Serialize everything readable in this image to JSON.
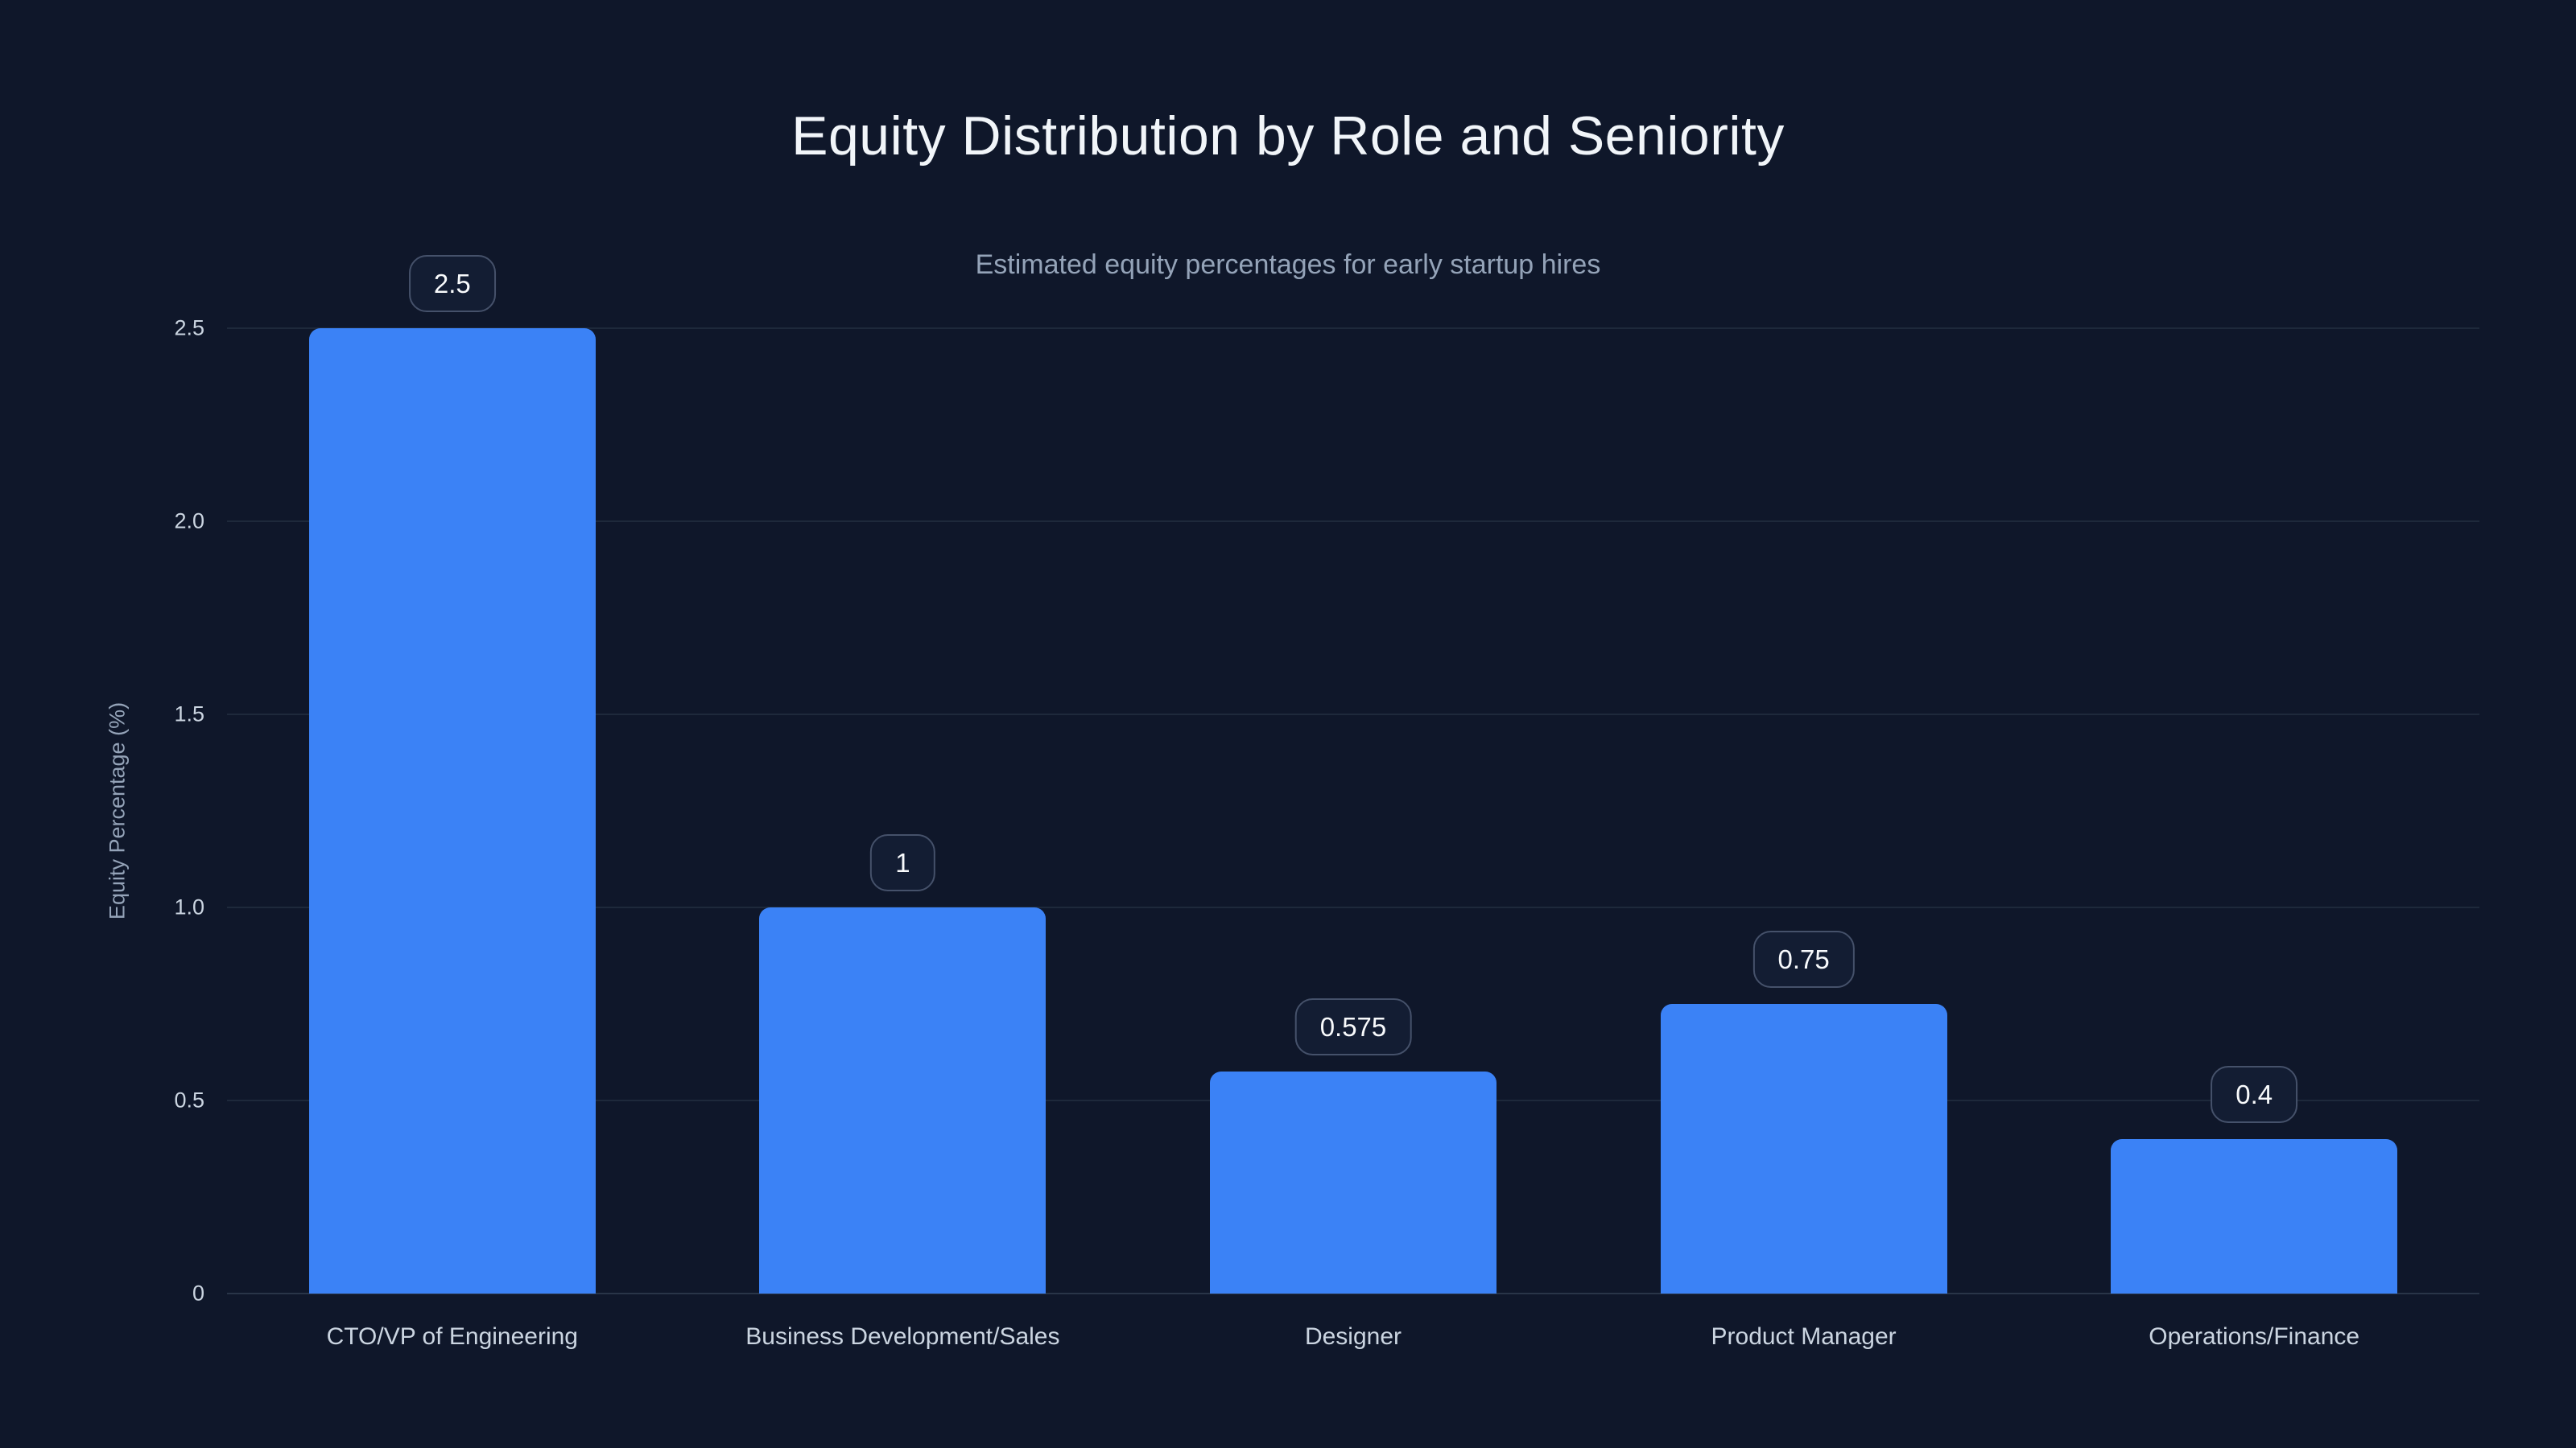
{
  "chart_data": {
    "type": "bar",
    "title": "Equity Distribution by Role and Seniority",
    "subtitle": "Estimated equity percentages for early startup hires",
    "xlabel": "",
    "ylabel": "Equity Percentage (%)",
    "categories": [
      "CTO/VP of Engineering",
      "Business Development/Sales",
      "Designer",
      "Product Manager",
      "Operations/Finance"
    ],
    "values": [
      2.5,
      1,
      0.575,
      0.75,
      0.4
    ],
    "bar_labels": [
      "2.5",
      "1",
      "0.575",
      "0.75",
      "0.4"
    ],
    "ylim": [
      0,
      2.5
    ],
    "yticks": [
      0,
      0.5,
      1,
      1.5,
      2,
      2.5
    ],
    "ytick_labels": [
      "0",
      "0.5",
      "1.0",
      "1.5",
      "2.0",
      "2.5"
    ],
    "grid": "horizontal",
    "legend": "none",
    "colors": {
      "background": "#0f172a",
      "bar": "#3b82f6",
      "title": "#f1f5f9",
      "subtitle": "#94a3b8",
      "tick_label": "#cbd5e1",
      "axis_title": "#94a3b8",
      "gridline": "#1e293b",
      "badge_border": "#45516a",
      "badge_background": "#131d33",
      "badge_text": "#f8fafc"
    }
  }
}
